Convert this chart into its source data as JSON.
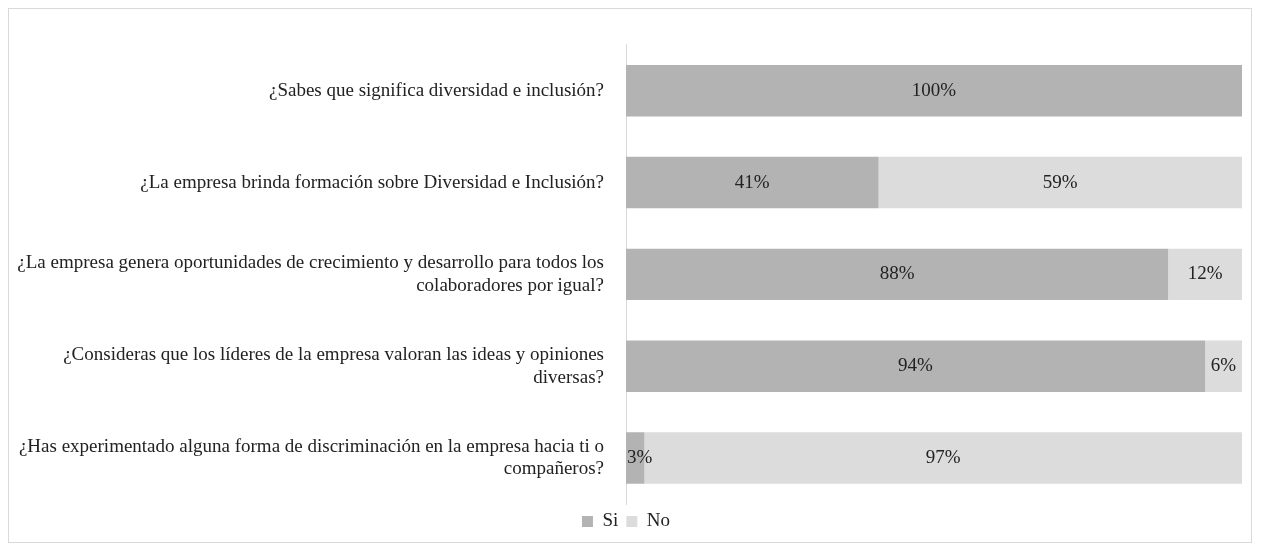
{
  "chart_data": {
    "type": "bar",
    "orientation": "horizontal",
    "stacked": true,
    "categories": [
      "¿Sabes que significa diversidad e inclusión?",
      "¿La empresa brinda formación sobre Diversidad e Inclusión?",
      "¿La empresa genera oportunidades de crecimiento y desarrollo para todos los colaboradores por igual?",
      "¿Consideras que los líderes de la empresa valoran las ideas y opiniones diversas?",
      "¿Has experimentado alguna forma de discriminación en la empresa hacia ti o compañeros?"
    ],
    "series": [
      {
        "name": "Si",
        "color": "#b3b3b3",
        "values": [
          100,
          41,
          88,
          94,
          3
        ],
        "value_labels": [
          "100%",
          "41%",
          "88%",
          "94%",
          "3%"
        ]
      },
      {
        "name": "No",
        "color": "#dcdcdc",
        "values": [
          0,
          59,
          12,
          6,
          97
        ],
        "value_labels": [
          null,
          "59%",
          "12%",
          "6%",
          "97%"
        ]
      }
    ],
    "xlim": [
      0,
      100
    ],
    "tick_labels": "y",
    "grid": false,
    "legend": "bottom"
  }
}
